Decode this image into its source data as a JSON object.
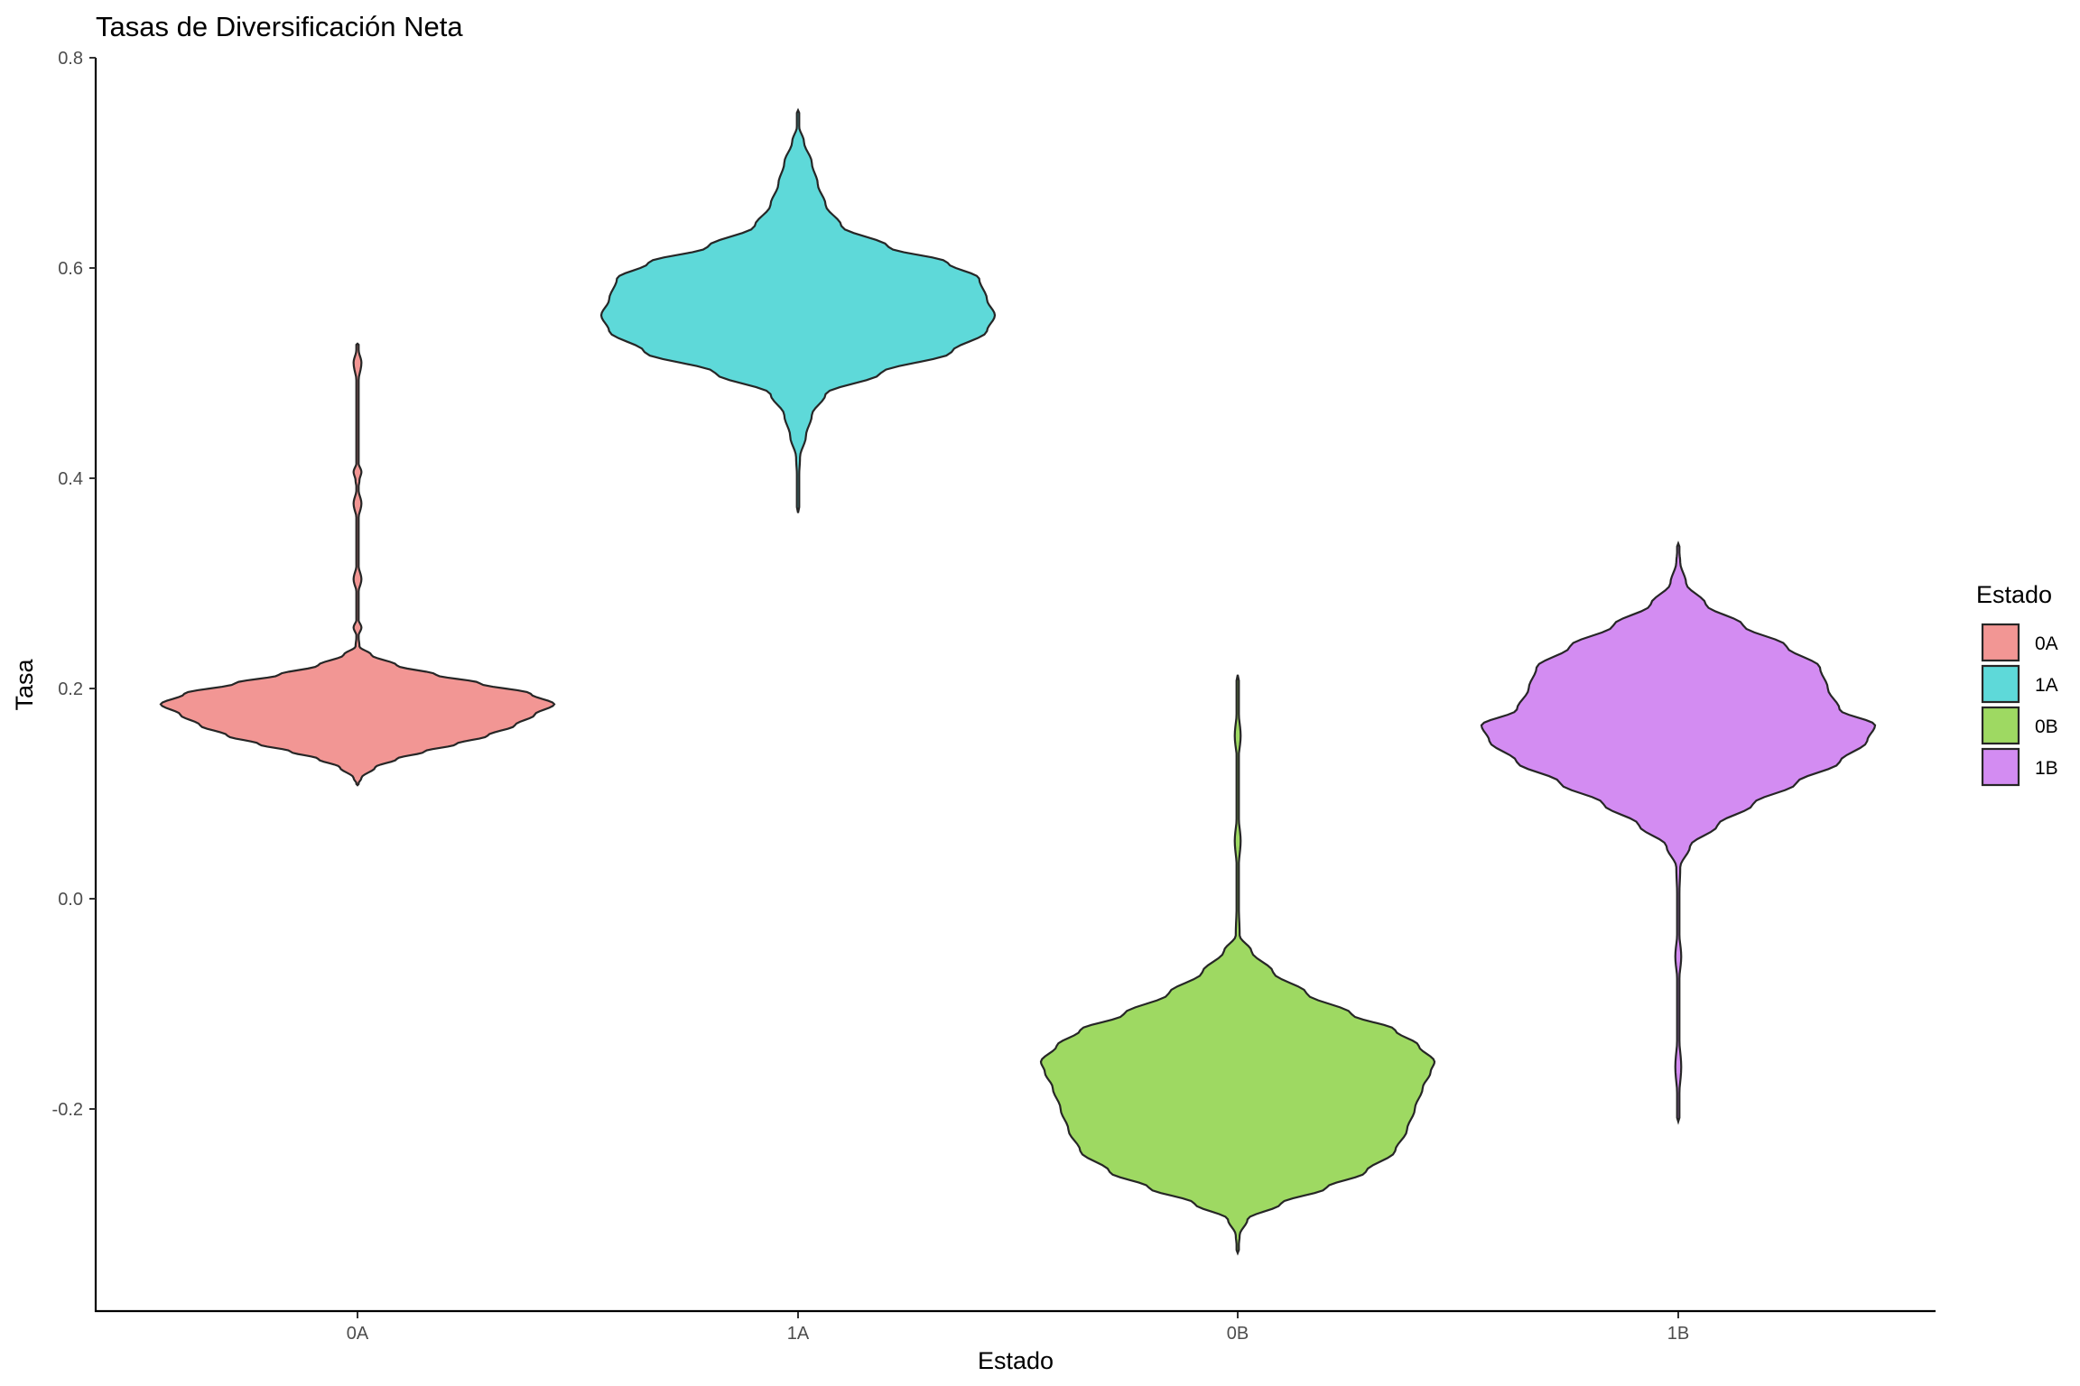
{
  "chart_data": {
    "type": "violin",
    "title": "Tasas de Diversificación Neta",
    "xlabel": "Estado",
    "ylabel": "Tasa",
    "categories": [
      "0A",
      "1A",
      "0B",
      "1B"
    ],
    "ylim": [
      -0.39,
      0.8
    ],
    "yticks": [
      -0.2,
      0.0,
      0.2,
      0.4,
      0.6,
      0.8
    ],
    "ytick_labels": [
      "-0.2",
      "0.0",
      "0.2",
      "0.4",
      "0.6",
      "0.8"
    ],
    "grid": false,
    "legend": {
      "title": "Estado",
      "position": "right",
      "entries": [
        "0A",
        "1A",
        "0B",
        "1B"
      ]
    },
    "series": [
      {
        "category": "0A",
        "color": "#F29694",
        "range": [
          0.108,
          0.528
        ],
        "density_profile": [
          [
            0.108,
            0.0
          ],
          [
            0.115,
            0.02
          ],
          [
            0.125,
            0.09
          ],
          [
            0.133,
            0.2
          ],
          [
            0.14,
            0.34
          ],
          [
            0.147,
            0.5
          ],
          [
            0.155,
            0.66
          ],
          [
            0.165,
            0.8
          ],
          [
            0.175,
            0.9
          ],
          [
            0.185,
            1.0
          ],
          [
            0.195,
            0.88
          ],
          [
            0.205,
            0.62
          ],
          [
            0.213,
            0.4
          ],
          [
            0.222,
            0.2
          ],
          [
            0.232,
            0.07
          ],
          [
            0.24,
            0.01
          ],
          [
            0.25,
            0.005
          ],
          [
            0.258,
            0.02
          ],
          [
            0.266,
            0.004
          ],
          [
            0.29,
            0.003
          ],
          [
            0.304,
            0.02
          ],
          [
            0.318,
            0.004
          ],
          [
            0.36,
            0.003
          ],
          [
            0.376,
            0.02
          ],
          [
            0.39,
            0.004
          ],
          [
            0.398,
            0.01
          ],
          [
            0.406,
            0.02
          ],
          [
            0.415,
            0.004
          ],
          [
            0.49,
            0.003
          ],
          [
            0.51,
            0.02
          ],
          [
            0.522,
            0.006
          ],
          [
            0.528,
            0.0
          ]
        ]
      },
      {
        "category": "1A",
        "color": "#5ED9D9",
        "range": [
          0.367,
          0.75
        ],
        "density_profile": [
          [
            0.367,
            0.0
          ],
          [
            0.4,
            0.005
          ],
          [
            0.42,
            0.01
          ],
          [
            0.44,
            0.04
          ],
          [
            0.46,
            0.07
          ],
          [
            0.48,
            0.14
          ],
          [
            0.5,
            0.42
          ],
          [
            0.52,
            0.78
          ],
          [
            0.54,
            0.96
          ],
          [
            0.555,
            1.0
          ],
          [
            0.57,
            0.96
          ],
          [
            0.59,
            0.92
          ],
          [
            0.605,
            0.76
          ],
          [
            0.62,
            0.46
          ],
          [
            0.64,
            0.22
          ],
          [
            0.66,
            0.14
          ],
          [
            0.68,
            0.1
          ],
          [
            0.7,
            0.07
          ],
          [
            0.72,
            0.03
          ],
          [
            0.735,
            0.005
          ],
          [
            0.75,
            0.0
          ]
        ]
      },
      {
        "category": "0B",
        "color": "#9ED962",
        "range": [
          -0.337,
          0.213
        ],
        "density_profile": [
          [
            -0.337,
            0.0
          ],
          [
            -0.32,
            0.01
          ],
          [
            -0.305,
            0.05
          ],
          [
            -0.29,
            0.22
          ],
          [
            -0.275,
            0.45
          ],
          [
            -0.26,
            0.65
          ],
          [
            -0.24,
            0.8
          ],
          [
            -0.22,
            0.86
          ],
          [
            -0.2,
            0.9
          ],
          [
            -0.18,
            0.94
          ],
          [
            -0.165,
            0.98
          ],
          [
            -0.155,
            1.0
          ],
          [
            -0.14,
            0.92
          ],
          [
            -0.125,
            0.8
          ],
          [
            -0.11,
            0.58
          ],
          [
            -0.09,
            0.35
          ],
          [
            -0.07,
            0.18
          ],
          [
            -0.05,
            0.07
          ],
          [
            -0.035,
            0.01
          ],
          [
            0.0,
            0.004
          ],
          [
            0.03,
            0.005
          ],
          [
            0.055,
            0.015
          ],
          [
            0.08,
            0.004
          ],
          [
            0.13,
            0.003
          ],
          [
            0.155,
            0.015
          ],
          [
            0.18,
            0.004
          ],
          [
            0.213,
            0.0
          ]
        ]
      },
      {
        "category": "1B",
        "color": "#D38CF2",
        "range": [
          -0.212,
          0.338
        ],
        "density_profile": [
          [
            -0.212,
            0.0
          ],
          [
            -0.19,
            0.004
          ],
          [
            -0.16,
            0.015
          ],
          [
            -0.13,
            0.004
          ],
          [
            -0.08,
            0.004
          ],
          [
            -0.055,
            0.015
          ],
          [
            -0.03,
            0.004
          ],
          [
            0.0,
            0.005
          ],
          [
            0.03,
            0.01
          ],
          [
            0.05,
            0.06
          ],
          [
            0.07,
            0.2
          ],
          [
            0.09,
            0.38
          ],
          [
            0.11,
            0.6
          ],
          [
            0.13,
            0.82
          ],
          [
            0.15,
            0.96
          ],
          [
            0.165,
            1.0
          ],
          [
            0.18,
            0.82
          ],
          [
            0.2,
            0.76
          ],
          [
            0.22,
            0.72
          ],
          [
            0.24,
            0.55
          ],
          [
            0.26,
            0.33
          ],
          [
            0.28,
            0.14
          ],
          [
            0.3,
            0.04
          ],
          [
            0.32,
            0.01
          ],
          [
            0.338,
            0.0
          ]
        ]
      }
    ]
  }
}
